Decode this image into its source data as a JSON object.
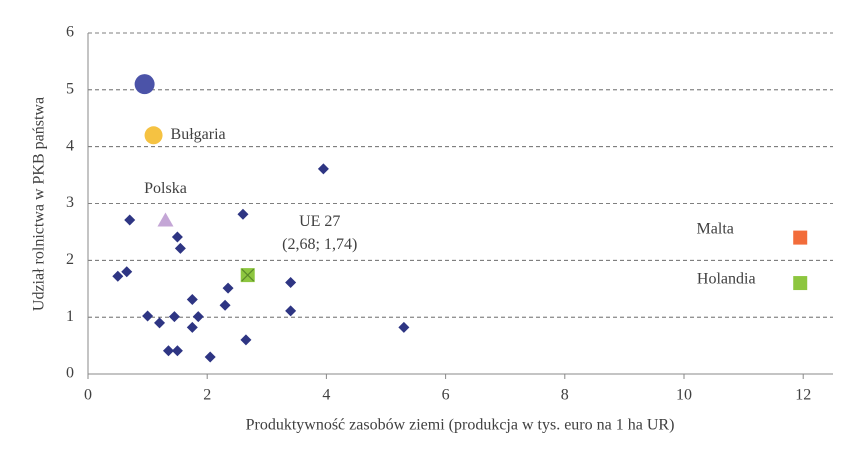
{
  "chart_data": {
    "type": "scatter",
    "xlabel": "Produktywność zasobów ziemi (produkcja w tys. euro na 1 ha UR)",
    "ylabel": "Udział rolnictwa w PKB państwa",
    "xlim": [
      0,
      12.5
    ],
    "ylim": [
      0,
      6
    ],
    "xticks": [
      0,
      2,
      4,
      6,
      8,
      10,
      12
    ],
    "yticks": [
      0,
      1,
      2,
      3,
      4,
      5,
      6
    ],
    "grid": true,
    "series": [
      {
        "color": "#2e3583",
        "marker": "diamond",
        "x": [
          0.5,
          0.65,
          0.7,
          1.0,
          1.2,
          1.35,
          1.45,
          1.5,
          1.5,
          1.55,
          1.75,
          1.75,
          1.85,
          2.05,
          2.3,
          2.35,
          2.6,
          2.65,
          3.4,
          3.4,
          3.95,
          5.3
        ],
        "values": [
          1.72,
          1.8,
          2.71,
          1.02,
          0.9,
          0.41,
          1.01,
          0.41,
          2.41,
          2.21,
          1.31,
          0.82,
          1.01,
          0.3,
          1.21,
          1.51,
          2.81,
          0.6,
          1.61,
          1.11,
          3.61,
          0.82
        ]
      }
    ],
    "highlights": [
      {
        "x": 0.95,
        "y": 5.1,
        "color": "#4b53a8",
        "marker": "circle"
      },
      {
        "label": "Bułgaria",
        "x": 1.1,
        "y": 4.2,
        "color": "#f5c242",
        "marker": "circle"
      },
      {
        "label": "Polska",
        "x": 1.3,
        "y": 2.7,
        "color": "#c4a6d6",
        "marker": "triangle"
      },
      {
        "label": "UE 27",
        "value_label": "(2,68; 1,74)",
        "x": 2.68,
        "y": 1.74,
        "color": "#8dc63f",
        "marker": "square-x"
      },
      {
        "label": "Malta",
        "x": 11.95,
        "y": 2.4,
        "color": "#f26c3a",
        "marker": "square"
      },
      {
        "label": "Holandia",
        "x": 11.95,
        "y": 1.6,
        "color": "#8dc63f",
        "marker": "square"
      }
    ]
  }
}
